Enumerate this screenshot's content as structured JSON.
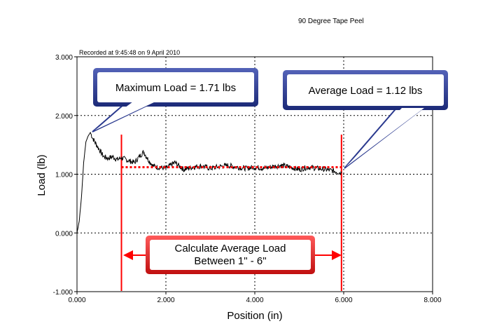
{
  "chart_data": {
    "type": "line",
    "title": "90 Degree Tape Peel",
    "subtitle": "Recorded at 9:45:48 on 9 April 2010",
    "xlabel": "Position (in)",
    "ylabel": "Load (lb)",
    "xlim": [
      0,
      8
    ],
    "ylim": [
      -1,
      3
    ],
    "grid": true,
    "x_ticks": [
      "0.000",
      "2.000",
      "4.000",
      "6.000",
      "8.000"
    ],
    "y_ticks": [
      "-1.000",
      "0.000",
      "1.000",
      "2.000",
      "3.000"
    ],
    "series": [
      {
        "name": "",
        "color": "#000000",
        "x": [
          0.0,
          0.05,
          0.1,
          0.15,
          0.2,
          0.25,
          0.3,
          0.35,
          0.4,
          0.5,
          0.6,
          0.7,
          0.8,
          0.9,
          1.0,
          1.1,
          1.2,
          1.3,
          1.4,
          1.5,
          1.6,
          1.7,
          1.8,
          2.0,
          2.2,
          2.4,
          2.6,
          2.8,
          3.0,
          3.2,
          3.4,
          3.6,
          3.8,
          4.0,
          4.2,
          4.4,
          4.6,
          4.8,
          5.0,
          5.2,
          5.4,
          5.6,
          5.8,
          5.95
        ],
        "y": [
          0.0,
          0.2,
          0.6,
          1.2,
          1.55,
          1.65,
          1.71,
          1.62,
          1.55,
          1.42,
          1.3,
          1.27,
          1.3,
          1.25,
          1.28,
          1.25,
          1.22,
          1.2,
          1.3,
          1.38,
          1.25,
          1.15,
          1.12,
          1.1,
          1.2,
          1.08,
          1.12,
          1.14,
          1.1,
          1.13,
          1.15,
          1.12,
          1.1,
          1.12,
          1.1,
          1.13,
          1.15,
          1.12,
          1.08,
          1.12,
          1.1,
          1.08,
          1.05,
          1.02
        ]
      },
      {
        "name": "",
        "color": "#ff0000",
        "style": "dotted",
        "x": [
          1.0,
          5.95
        ],
        "y": [
          1.12,
          1.12
        ]
      }
    ],
    "vertical_lines": [
      {
        "x": 1.0,
        "color": "#ff0000"
      },
      {
        "x": 5.95,
        "color": "#ff0000"
      }
    ],
    "annotations": {
      "max_load": "Maximum Load = 1.71 lbs",
      "avg_load": "Average Load = 1.12 lbs",
      "calc_line1": "Calculate Average Load",
      "calc_line2": "Between 1\" - 6\""
    },
    "colors": {
      "callout_blue_fill": "#2b3a8f",
      "callout_blue_inner": "#ffffff",
      "callout_red_border": "#e02020",
      "marker_red": "#ff0000"
    }
  }
}
